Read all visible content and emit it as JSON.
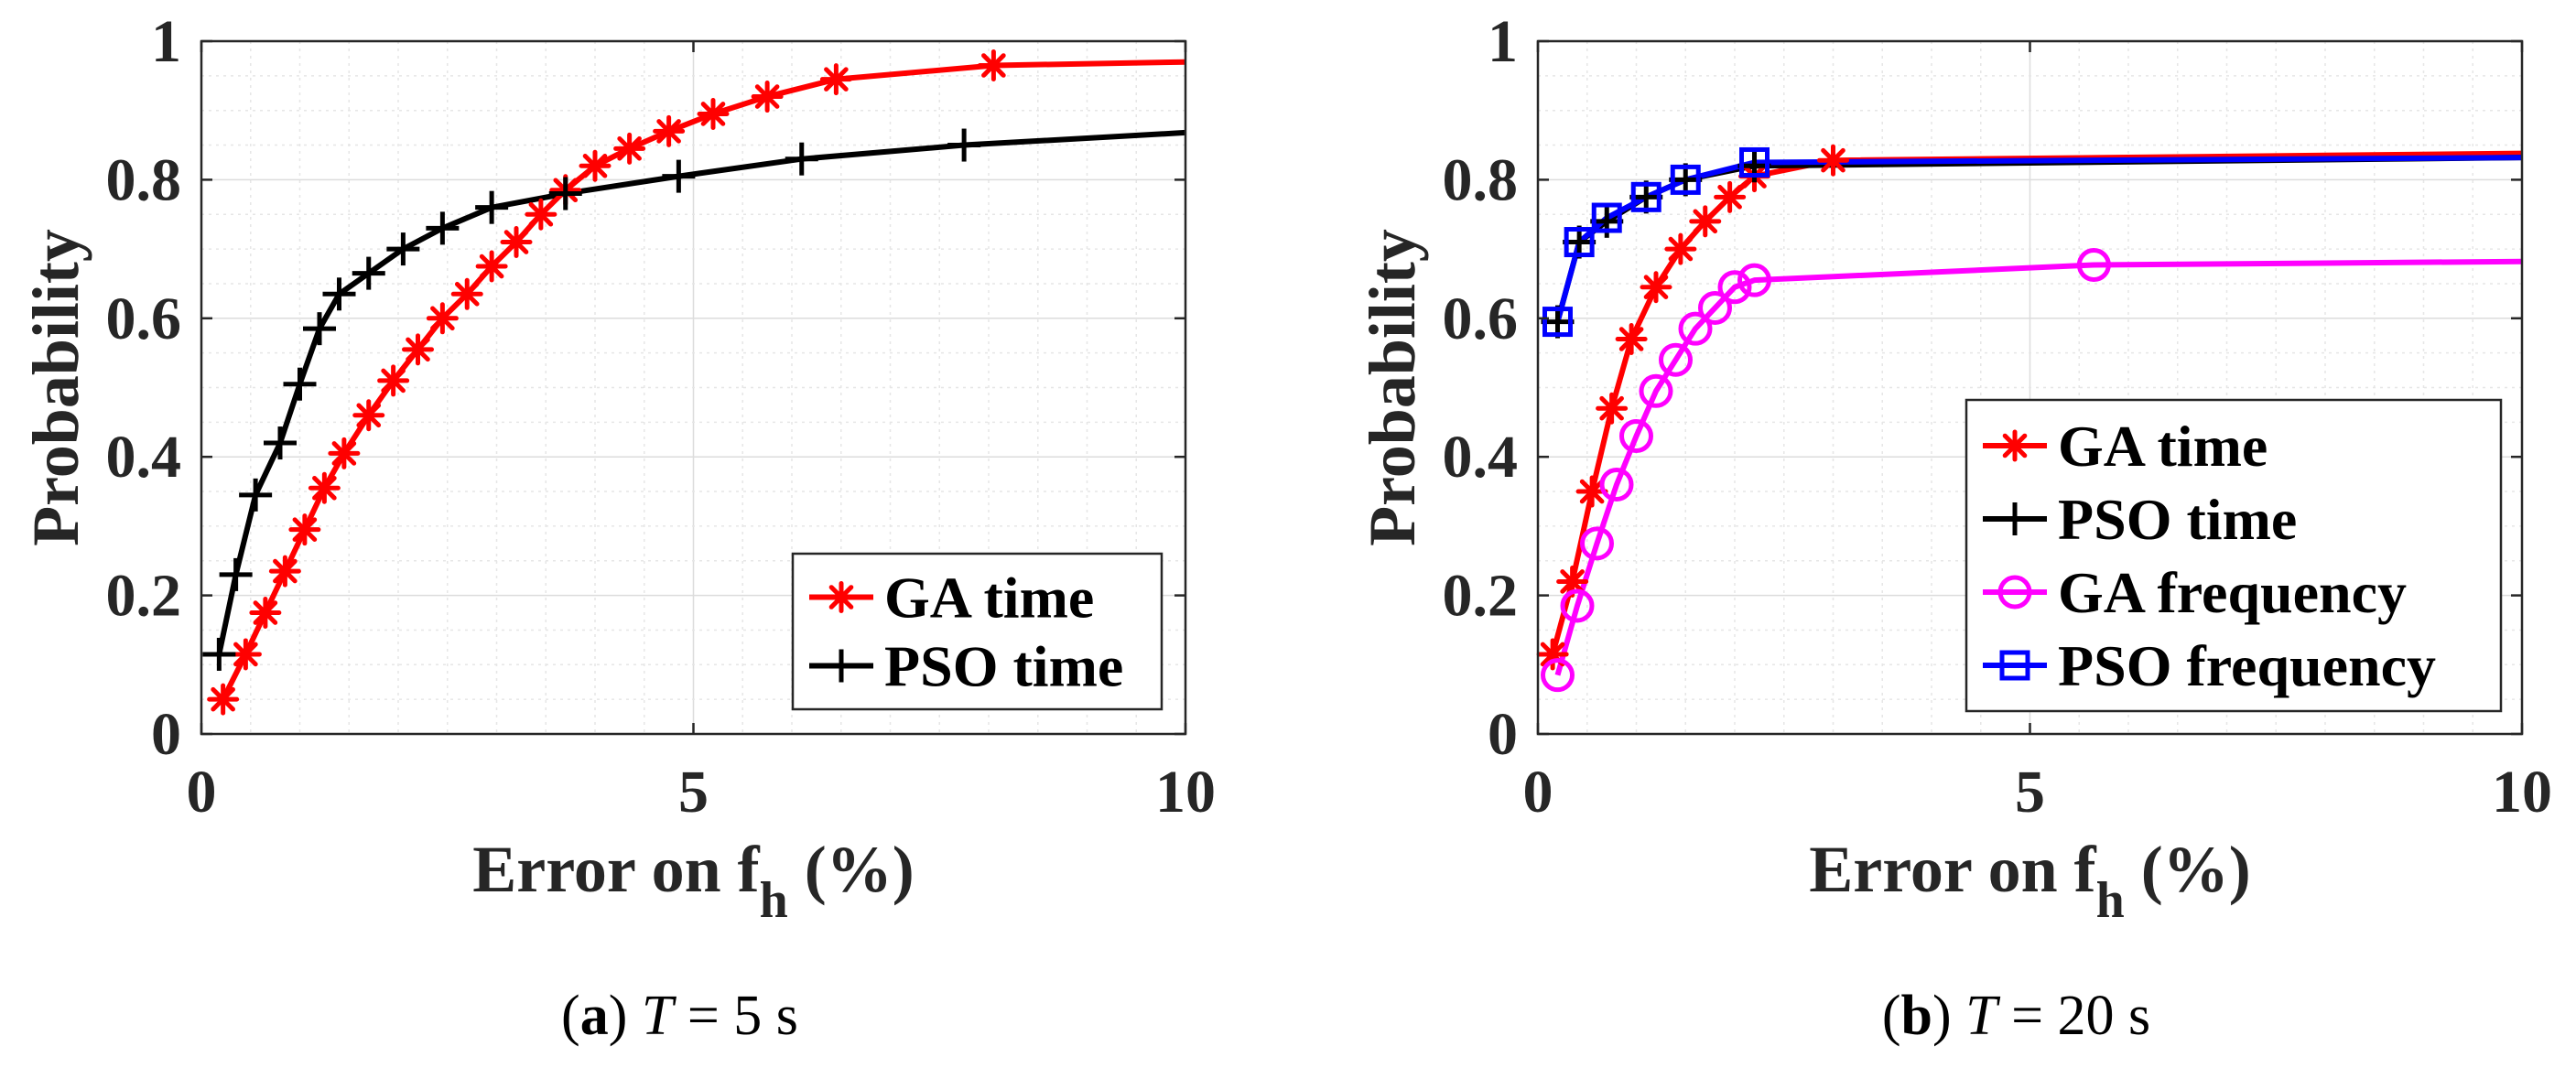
{
  "colors": {
    "red": "#ff0000",
    "black": "#000000",
    "magenta": "#ff00ff",
    "blue": "#0000ff",
    "text": "#262626",
    "grid": "#d8d8d8",
    "axes": "#262626"
  },
  "chart_data": [
    {
      "type": "line",
      "caption_label": "(a)",
      "caption_math": "T",
      "caption_rest": " = 5 s",
      "xlabel": "Error on f",
      "xlabel_sub": "h",
      "xlabel_tail": " (%)",
      "ylabel": "Probability",
      "xlim": [
        0,
        10
      ],
      "ylim": [
        0,
        1
      ],
      "xticks": [
        0,
        5,
        10
      ],
      "xtick_labels": [
        "0",
        "5",
        "10"
      ],
      "yticks": [
        0,
        0.2,
        0.4,
        0.6,
        0.8,
        1
      ],
      "ytick_labels": [
        "0",
        "0.2",
        "0.4",
        "0.6",
        "0.8",
        "1"
      ],
      "grid": true,
      "legend_position": "bottom-right",
      "series": [
        {
          "name": "GA time",
          "color": "red",
          "marker": "asterisk",
          "x": [
            0.22,
            0.45,
            0.65,
            0.85,
            1.05,
            1.25,
            1.45,
            1.7,
            1.95,
            2.2,
            2.45,
            2.7,
            2.95,
            3.2,
            3.45,
            3.7,
            4.0,
            4.35,
            4.75,
            5.2,
            5.75,
            6.45,
            8.05,
            10
          ],
          "y": [
            0.05,
            0.115,
            0.175,
            0.235,
            0.295,
            0.355,
            0.405,
            0.46,
            0.51,
            0.555,
            0.6,
            0.635,
            0.675,
            0.71,
            0.75,
            0.785,
            0.82,
            0.845,
            0.87,
            0.895,
            0.92,
            0.945,
            0.965,
            0.97
          ],
          "marker_indices": [
            0,
            1,
            2,
            3,
            4,
            5,
            6,
            7,
            8,
            9,
            10,
            11,
            12,
            13,
            14,
            15,
            16,
            17,
            18,
            19,
            20,
            21,
            22
          ]
        },
        {
          "name": "PSO time",
          "color": "black",
          "marker": "plus",
          "x": [
            0.18,
            0.35,
            0.55,
            0.8,
            1.0,
            1.2,
            1.4,
            1.7,
            2.05,
            2.45,
            2.95,
            3.7,
            4.85,
            6.1,
            7.75,
            10
          ],
          "y": [
            0.115,
            0.23,
            0.345,
            0.42,
            0.505,
            0.585,
            0.635,
            0.665,
            0.7,
            0.73,
            0.76,
            0.78,
            0.805,
            0.83,
            0.85,
            0.868
          ],
          "marker_indices": [
            0,
            1,
            2,
            3,
            4,
            5,
            6,
            7,
            8,
            9,
            10,
            11,
            12,
            13,
            14
          ]
        }
      ]
    },
    {
      "type": "line",
      "caption_label": "(b)",
      "caption_math": "T",
      "caption_rest": " = 20 s",
      "xlabel": "Error on f",
      "xlabel_sub": "h",
      "xlabel_tail": " (%)",
      "ylabel": "Probability",
      "xlim": [
        0,
        10
      ],
      "ylim": [
        0,
        1
      ],
      "xticks": [
        0,
        5,
        10
      ],
      "xtick_labels": [
        "0",
        "5",
        "10"
      ],
      "yticks": [
        0,
        0.2,
        0.4,
        0.6,
        0.8,
        1
      ],
      "ytick_labels": [
        "0",
        "0.2",
        "0.4",
        "0.6",
        "0.8",
        "1"
      ],
      "grid": true,
      "legend_position": "middle-right",
      "series": [
        {
          "name": "GA time",
          "color": "red",
          "marker": "asterisk",
          "x": [
            0.15,
            0.35,
            0.55,
            0.75,
            0.95,
            1.2,
            1.45,
            1.7,
            1.95,
            2.2,
            3.0,
            10
          ],
          "y": [
            0.115,
            0.22,
            0.35,
            0.47,
            0.57,
            0.645,
            0.7,
            0.74,
            0.775,
            0.805,
            0.828,
            0.838
          ],
          "marker_indices": [
            0,
            1,
            2,
            3,
            4,
            5,
            6,
            7,
            8,
            9,
            10
          ]
        },
        {
          "name": "PSO time",
          "color": "black",
          "marker": "plus",
          "x": [
            0.2,
            0.42,
            0.7,
            1.1,
            1.5,
            2.2,
            10
          ],
          "y": [
            0.595,
            0.71,
            0.74,
            0.775,
            0.8,
            0.82,
            0.832
          ],
          "marker_indices": [
            0,
            1,
            2,
            3,
            4,
            5
          ]
        },
        {
          "name": "GA frequency",
          "color": "magenta",
          "marker": "circle",
          "x": [
            0.2,
            0.4,
            0.6,
            0.8,
            1.0,
            1.2,
            1.4,
            1.6,
            1.8,
            2.0,
            2.2,
            5.65,
            10
          ],
          "y": [
            0.085,
            0.185,
            0.275,
            0.36,
            0.43,
            0.495,
            0.54,
            0.585,
            0.615,
            0.645,
            0.655,
            0.677,
            0.682
          ],
          "marker_indices": [
            0,
            1,
            2,
            3,
            4,
            5,
            6,
            7,
            8,
            9,
            10,
            11
          ]
        },
        {
          "name": "PSO frequency",
          "color": "blue",
          "marker": "square",
          "x": [
            0.2,
            0.42,
            0.7,
            1.1,
            1.5,
            2.2,
            10
          ],
          "y": [
            0.595,
            0.71,
            0.745,
            0.775,
            0.8,
            0.825,
            0.832
          ],
          "marker_indices": [
            0,
            1,
            2,
            3,
            4,
            5
          ]
        }
      ]
    }
  ]
}
